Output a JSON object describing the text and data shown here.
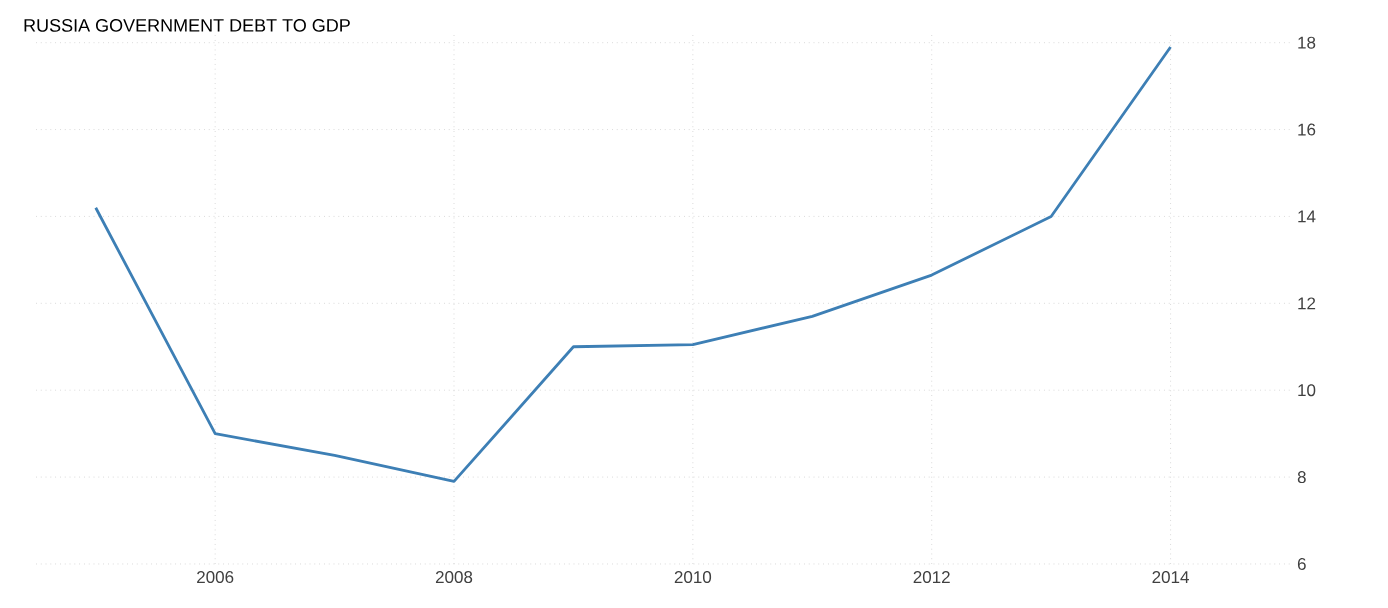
{
  "chart_data": {
    "type": "line",
    "title": "RUSSIA GOVERNMENT DEBT TO GDP",
    "x": [
      2005,
      2006,
      2007,
      2008,
      2009,
      2010,
      2011,
      2012,
      2013,
      2014
    ],
    "series": [
      {
        "color": "#3d7fb5",
        "values": [
          14.2,
          9.0,
          8.5,
          7.9,
          11.0,
          11.05,
          11.7,
          12.65,
          14.0,
          17.9
        ]
      }
    ],
    "xlim": [
      2004.5,
      2015
    ],
    "xticks": [
      2006,
      2008,
      2010,
      2012,
      2014
    ],
    "ylim": [
      6,
      18.2
    ],
    "yticks": [
      6,
      8,
      10,
      12,
      14,
      16,
      18
    ],
    "grid": true,
    "marker": "none",
    "line_style": "solid"
  }
}
